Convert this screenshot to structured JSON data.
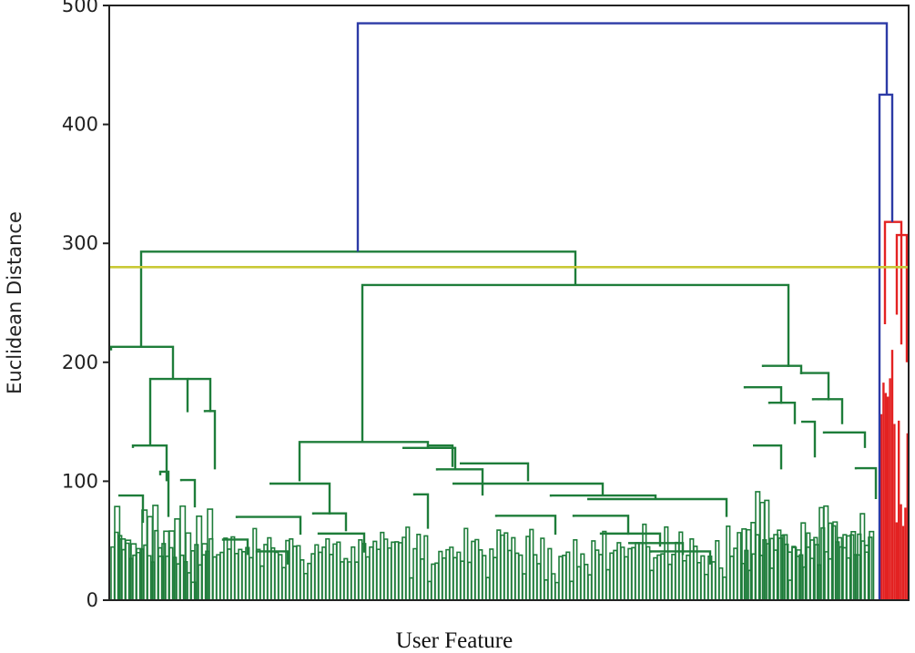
{
  "chart_data": {
    "type": "dendrogram",
    "xlabel": "User Feature",
    "ylabel": "Euclidean Distance",
    "ylim": [
      0,
      500
    ],
    "yticks": [
      "0",
      "100",
      "200",
      "300",
      "400",
      "500"
    ],
    "grid": false,
    "legend": "none",
    "threshold": {
      "value": 280,
      "color": "#c9c936"
    },
    "colors": {
      "top": "#2c3aa6",
      "cluster_a": "#1e7d3a",
      "cluster_b": "#e32222",
      "axis": "#222222"
    },
    "merges": [
      {
        "name": "root",
        "height": 485,
        "color": "top",
        "left": "green-cluster",
        "right": "right-group"
      },
      {
        "name": "right-group",
        "height": 425,
        "color": "top",
        "left": "blue-leaf",
        "right": "red-cluster"
      },
      {
        "name": "green-cluster",
        "height": 293,
        "color": "cluster_a",
        "left": "g-left",
        "right": "g-right"
      },
      {
        "name": "g-right",
        "height": 265,
        "color": "cluster_a",
        "left": "g-mid",
        "right": "g-far"
      },
      {
        "name": "g-left",
        "height": 213,
        "color": "cluster_a",
        "left": "g-left-a",
        "right": "g-left-b"
      },
      {
        "name": "g-far",
        "height": 196,
        "color": "cluster_a",
        "left": "g-far-a",
        "right": "g-far-b"
      },
      {
        "name": "g-mid",
        "height": 133,
        "color": "cluster_a",
        "left": "g-mid-a",
        "right": "g-mid-b"
      },
      {
        "name": "red-cluster",
        "height": 318,
        "color": "cluster_b",
        "left": "r-a",
        "right": "r-b"
      },
      {
        "name": "r-b",
        "height": 307,
        "color": "cluster_b",
        "left": "r-b1",
        "right": "r-b2"
      }
    ]
  }
}
